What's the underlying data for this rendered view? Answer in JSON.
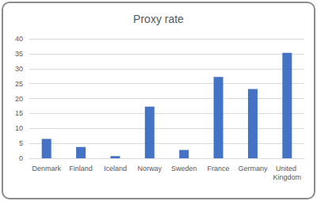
{
  "chart_data": {
    "type": "bar",
    "title": "Proxy rate",
    "categories": [
      "Denmark",
      "Finland",
      "Iceland",
      "Norway",
      "Sweden",
      "France",
      "Germany",
      "United Kingdom"
    ],
    "values": [
      6.5,
      3.8,
      0.7,
      17.3,
      2.8,
      27.2,
      23.2,
      35.3
    ],
    "color": "#4472c4",
    "ylim": [
      0,
      40
    ],
    "yticks": [
      0,
      5,
      10,
      15,
      20,
      25,
      30,
      35,
      40
    ],
    "grid": true
  }
}
